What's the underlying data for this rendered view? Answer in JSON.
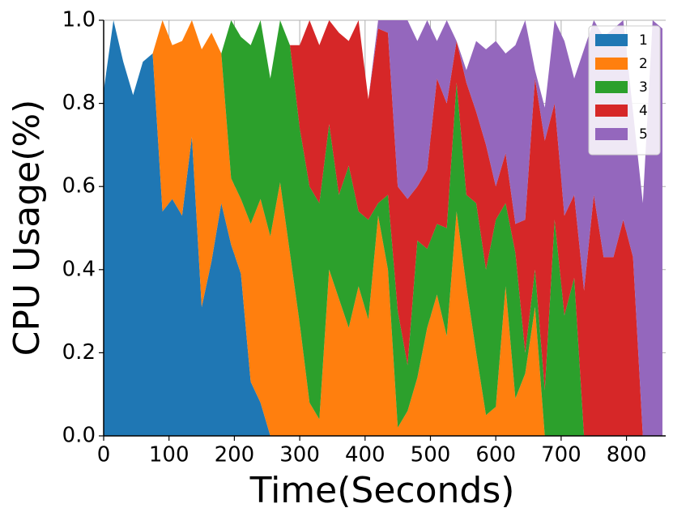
{
  "chart_data": {
    "type": "stacked_area",
    "xlabel": "Time(Seconds)",
    "ylabel": "CPU Usage(%)",
    "x": [
      0,
      15,
      30,
      45,
      60,
      75,
      90,
      105,
      120,
      135,
      150,
      165,
      180,
      195,
      210,
      225,
      240,
      255,
      270,
      285,
      300,
      315,
      330,
      345,
      360,
      375,
      390,
      405,
      420,
      435,
      450,
      465,
      480,
      495,
      510,
      525,
      540,
      555,
      570,
      585,
      600,
      615,
      630,
      645,
      660,
      675,
      690,
      705,
      720,
      735,
      750,
      765,
      780,
      795,
      810,
      825,
      840,
      855
    ],
    "series": [
      {
        "name": "1",
        "color": "#1f77b4",
        "values": [
          0.83,
          1.0,
          0.9,
          0.82,
          0.9,
          0.92,
          0.54,
          0.57,
          0.53,
          0.72,
          0.31,
          0.42,
          0.56,
          0.46,
          0.39,
          0.13,
          0.08,
          0,
          0,
          0,
          0,
          0,
          0,
          0,
          0,
          0,
          0,
          0,
          0,
          0,
          0,
          0,
          0,
          0,
          0,
          0,
          0,
          0,
          0,
          0,
          0,
          0,
          0,
          0,
          0,
          0,
          0,
          0,
          0,
          0,
          0,
          0,
          0,
          0,
          0,
          0,
          0,
          0
        ]
      },
      {
        "name": "2",
        "color": "#ff7f0e",
        "values": [
          0,
          0,
          0,
          0,
          0,
          0,
          0.46,
          0.37,
          0.42,
          0.28,
          0.62,
          0.55,
          0.36,
          0.16,
          0.18,
          0.38,
          0.49,
          0.48,
          0.61,
          0.44,
          0.27,
          0.08,
          0.04,
          0.4,
          0.33,
          0.26,
          0.36,
          0.28,
          0.53,
          0.4,
          0.02,
          0.06,
          0.14,
          0.26,
          0.34,
          0.24,
          0.54,
          0.36,
          0.2,
          0.05,
          0.07,
          0.36,
          0.09,
          0.15,
          0.31,
          0,
          0,
          0,
          0,
          0,
          0,
          0,
          0,
          0,
          0,
          0,
          0,
          0
        ]
      },
      {
        "name": "3",
        "color": "#2ca02c",
        "values": [
          0,
          0,
          0,
          0,
          0,
          0,
          0,
          0,
          0,
          0,
          0,
          0,
          0,
          0.38,
          0.39,
          0.43,
          0.43,
          0.38,
          0.39,
          0.5,
          0.47,
          0.52,
          0.52,
          0.35,
          0.25,
          0.39,
          0.18,
          0.24,
          0.03,
          0.18,
          0.28,
          0.11,
          0.33,
          0.19,
          0.17,
          0.26,
          0.31,
          0.22,
          0.36,
          0.35,
          0.45,
          0.2,
          0.35,
          0.05,
          0.09,
          0.11,
          0.52,
          0.29,
          0.38,
          0,
          0,
          0,
          0,
          0,
          0,
          0,
          0,
          0
        ]
      },
      {
        "name": "4",
        "color": "#d62728",
        "values": [
          0,
          0,
          0,
          0,
          0,
          0,
          0,
          0,
          0,
          0,
          0,
          0,
          0,
          0,
          0,
          0,
          0,
          0,
          0,
          0,
          0.2,
          0.4,
          0.38,
          0.25,
          0.39,
          0.3,
          0.46,
          0.29,
          0.42,
          0.39,
          0.3,
          0.4,
          0.13,
          0.19,
          0.35,
          0.3,
          0.1,
          0.27,
          0.22,
          0.3,
          0.08,
          0.12,
          0.07,
          0.32,
          0.46,
          0.6,
          0.28,
          0.24,
          0.2,
          0.35,
          0.58,
          0.43,
          0.43,
          0.52,
          0.43,
          0,
          0,
          0
        ]
      },
      {
        "name": "5",
        "color": "#9467bd",
        "values": [
          0,
          0,
          0,
          0,
          0,
          0,
          0,
          0,
          0,
          0,
          0,
          0,
          0,
          0,
          0,
          0,
          0,
          0,
          0,
          0,
          0,
          0,
          0,
          0,
          0,
          0,
          0,
          0,
          0.02,
          0.03,
          0.4,
          0.43,
          0.35,
          0.36,
          0.09,
          0.2,
          0,
          0.03,
          0.17,
          0.23,
          0.35,
          0.24,
          0.43,
          0.48,
          0.02,
          0.08,
          0.2,
          0.42,
          0.28,
          0.58,
          0.42,
          0.53,
          0.55,
          0.48,
          0.35,
          0.56,
          1.0,
          0.98
        ]
      }
    ],
    "xlim": [
      0,
      860
    ],
    "ylim": [
      0,
      1.0
    ],
    "xticks": [
      0,
      100,
      200,
      300,
      400,
      500,
      600,
      700,
      800
    ],
    "yticks": [
      {
        "value": 0,
        "label": "0.0"
      },
      0.2,
      0.4,
      0.6,
      0.8,
      {
        "value": 1.0,
        "label": "1.0"
      }
    ],
    "grid": true,
    "legend": "upper right"
  }
}
